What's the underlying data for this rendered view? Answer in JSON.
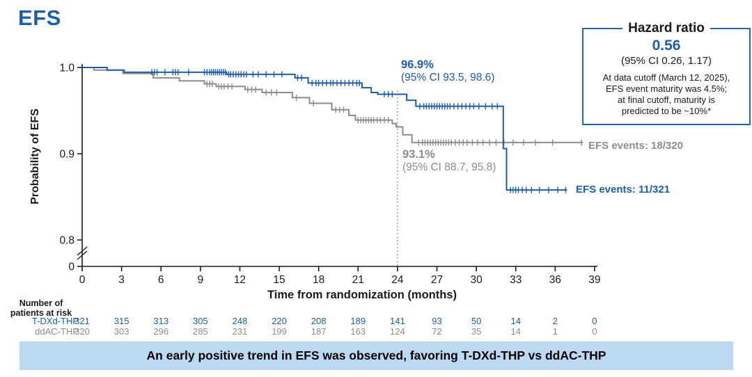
{
  "page": {
    "title": "EFS",
    "banner": "An early positive trend in EFS was observed, favoring T-DXd-THP vs ddAC-THP"
  },
  "hazard_box": {
    "title": "Hazard ratio",
    "value": "0.56",
    "ci": "(95% CI 0.26, 1.17)",
    "note_lines": [
      "At data cutoff (March 12, 2025),",
      "EFS event maturity was 4.5%;",
      "at final cutoff, maturity is",
      "predicted to be ~10%*"
    ]
  },
  "colors": {
    "blue": "#1E5CAC",
    "gray": "#8C8C8C",
    "axis": "#1a1a1a",
    "reference_line": "#999999",
    "banner_bg": "#BDD9F2"
  },
  "chart_data": {
    "type": "line",
    "subtype": "kaplan-meier-step",
    "title": "EFS",
    "xlabel": "Time from randomization (months)",
    "ylabel": "Probability of EFS",
    "x_ticks": [
      0,
      3,
      6,
      9,
      12,
      15,
      18,
      21,
      24,
      27,
      30,
      33,
      36,
      39
    ],
    "y_ticks": [
      {
        "label": "1.0",
        "value": 1.0
      },
      {
        "label": "0.9",
        "value": 0.9
      },
      {
        "label": "0.8",
        "value": 0.8
      },
      {
        "label": "0",
        "value": 0
      }
    ],
    "ylim": [
      0.8,
      1.0
    ],
    "axis_break": true,
    "grid": false,
    "reference_line_month": 24,
    "series": [
      {
        "name": "T-DXd-THP",
        "color": "#1E5CAC",
        "steps": [
          [
            0,
            1.0
          ],
          [
            1.9,
            0.997
          ],
          [
            3.2,
            0.9945
          ],
          [
            11.0,
            0.992
          ],
          [
            16.2,
            0.988
          ],
          [
            17.2,
            0.982
          ],
          [
            21.3,
            0.9765
          ],
          [
            22.0,
            0.971
          ],
          [
            22.5,
            0.969
          ],
          [
            24.7,
            0.962
          ],
          [
            25.4,
            0.955
          ],
          [
            32.05,
            0.906
          ],
          [
            32.3,
            0.858
          ]
        ],
        "end_month": 36.9,
        "censor_months": [
          5.3,
          5.5,
          5.7,
          6.3,
          6.9,
          7.1,
          7.3,
          8.1,
          9.3,
          9.5,
          9.7,
          9.85,
          10.0,
          10.15,
          10.3,
          10.45,
          10.6,
          10.75,
          10.9,
          11.15,
          11.3,
          11.5,
          11.7,
          11.9,
          12.1,
          12.3,
          12.5,
          13.0,
          13.4,
          14.0,
          14.6,
          15.2,
          16.4,
          16.7,
          17.5,
          17.8,
          18.0,
          18.3,
          18.6,
          18.9,
          19.1,
          19.4,
          19.7,
          20.0,
          20.3,
          20.6,
          20.9,
          21.1,
          23.0,
          23.3,
          23.6,
          25.7,
          26.0,
          26.2,
          26.4,
          26.6,
          26.8,
          27.0,
          27.2,
          27.4,
          27.6,
          27.8,
          28.0,
          28.3,
          28.6,
          28.9,
          29.2,
          29.5,
          29.8,
          30.2,
          30.7,
          31.2,
          31.6,
          32.6,
          32.8,
          33.0,
          33.2,
          33.5,
          33.8,
          34.2,
          34.8,
          35.5,
          36.2,
          36.8
        ],
        "annotation": {
          "value": "96.9%",
          "ci": "(95% CI 93.5, 98.6)",
          "at_month": 24
        },
        "events_label": "EFS events: 11/321"
      },
      {
        "name": "ddAC-THP",
        "color": "#8C8C8C",
        "steps": [
          [
            0,
            1.0
          ],
          [
            0.9,
            0.997
          ],
          [
            3.1,
            0.993
          ],
          [
            5.4,
            0.988
          ],
          [
            7.4,
            0.9845
          ],
          [
            9.3,
            0.981
          ],
          [
            10.2,
            0.978
          ],
          [
            12.4,
            0.9745
          ],
          [
            13.7,
            0.971
          ],
          [
            16.0,
            0.965
          ],
          [
            17.3,
            0.9585
          ],
          [
            19.0,
            0.951
          ],
          [
            20.3,
            0.9445
          ],
          [
            20.8,
            0.939
          ],
          [
            23.6,
            0.935
          ],
          [
            23.9,
            0.931
          ],
          [
            24.4,
            0.922
          ],
          [
            25.1,
            0.913
          ]
        ],
        "end_month": 38.1,
        "censor_months": [
          9.5,
          9.7,
          9.9,
          10.4,
          10.6,
          10.8,
          11.1,
          11.4,
          12.6,
          12.9,
          13.2,
          14.0,
          14.4,
          14.8,
          16.3,
          17.6,
          19.3,
          19.6,
          19.9,
          21.0,
          21.2,
          21.4,
          21.6,
          21.8,
          22.0,
          22.2,
          22.45,
          22.7,
          23.0,
          23.3,
          25.6,
          25.9,
          26.1,
          26.3,
          26.5,
          26.7,
          26.9,
          27.1,
          27.3,
          27.5,
          27.7,
          27.9,
          28.1,
          28.4,
          28.7,
          29.0,
          29.3,
          29.7,
          30.1,
          30.5,
          31.0,
          31.5,
          32.1,
          32.8,
          33.6,
          34.5,
          35.8,
          38.0
        ],
        "annotation": {
          "value": "93.1%",
          "ci": "(95% CI 88.7, 95.8)",
          "at_month": 24
        },
        "events_label": "EFS events: 18/320"
      }
    ]
  },
  "risk_table": {
    "header_lines": [
      "Number of",
      "patients at risk"
    ],
    "months": [
      0,
      3,
      6,
      9,
      12,
      15,
      18,
      21,
      24,
      27,
      30,
      33,
      36,
      39
    ],
    "rows": [
      {
        "label": "T-DXd-THP",
        "color": "#1E5CAC",
        "values": [
          321,
          315,
          313,
          305,
          248,
          220,
          208,
          189,
          141,
          93,
          50,
          14,
          2,
          0
        ]
      },
      {
        "label": "ddAC-THP",
        "color": "#8C8C8C",
        "values": [
          320,
          303,
          296,
          285,
          231,
          199,
          187,
          163,
          124,
          72,
          35,
          14,
          1,
          0
        ]
      }
    ]
  }
}
